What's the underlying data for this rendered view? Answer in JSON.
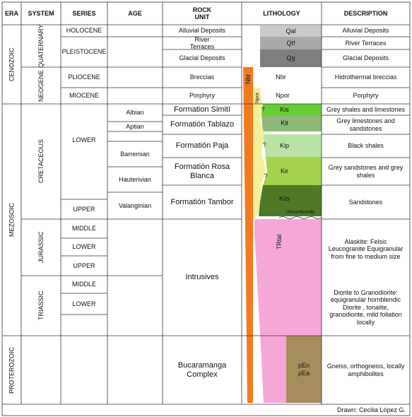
{
  "header": {
    "era": "ERA",
    "system": "SYSTEM",
    "series": "SERIES",
    "age": "AGE",
    "rock_unit": "ROCK UNIT",
    "lithology": "LITHOLOGY",
    "description": "DESCRIPTION"
  },
  "eras": [
    "CENOZOIC",
    "MEZOSOIC",
    "PROTEROZOIC"
  ],
  "systems": [
    "QUATERNARY",
    "NEOGENE",
    "CRETACEOUS",
    "JURASSIC",
    "TRIASSIC"
  ],
  "series": [
    "HOLOCENE",
    "PLEISTOCENE",
    "PLIOCENE",
    "MIOCENE",
    "LOWER",
    "UPPER",
    "MIDDLE",
    "LOWER",
    "UPPER",
    "MIDDLE",
    "LOWER"
  ],
  "ages": [
    "Albian",
    "Aptian",
    "Barremian",
    "Hauterivian",
    "Valanginian"
  ],
  "rock_units": [
    "Alluvial Deposits",
    "River Terraces",
    "Glacial Deposits",
    "Breccias",
    "Porphyry",
    "Formation Simití",
    "Formatión Tablazo",
    "Formatión Paja",
    "Formatión Rosa Blanca",
    "Formatión Tambor",
    "Intrusives",
    "Bucaramanga Complex"
  ],
  "lithology": {
    "qal": "Qal",
    "qtf": "Qtf",
    "qg": "Qg",
    "nbr_vertical": "Nbr",
    "npor_vertical": "Npor",
    "nbr": "Nbr",
    "npor": "Npor",
    "kis": "Kis",
    "kit": "Kit",
    "kip": "Kip",
    "kir": "Kir",
    "kits": "Kits",
    "unconformity": "Unconformity",
    "trtal": "TRtal",
    "pen": "pEn pEa",
    "question_marks": [
      "?",
      "?",
      "?"
    ]
  },
  "descriptions": [
    "Alluvial Deposits",
    "River Terraces",
    "Glacial Deposits",
    "Hidrothermal breccias",
    "Porphyry",
    "Grey shales and limestones",
    "Grey limestones and sandstones",
    "Black shales",
    "Grey sandstones and grey shales",
    "Sandstones",
    "Alaskite: Felsic Leucogranite Equigranular from fine to medium size",
    "Diorite to Granodiorite: equigranular hornblendic Diorite , tonalite, granodiorite, mild foliation locally",
    "Gneiss, orthogneiss, locally amphibolites"
  ],
  "footer": "Drawn: Cecilia López G."
}
